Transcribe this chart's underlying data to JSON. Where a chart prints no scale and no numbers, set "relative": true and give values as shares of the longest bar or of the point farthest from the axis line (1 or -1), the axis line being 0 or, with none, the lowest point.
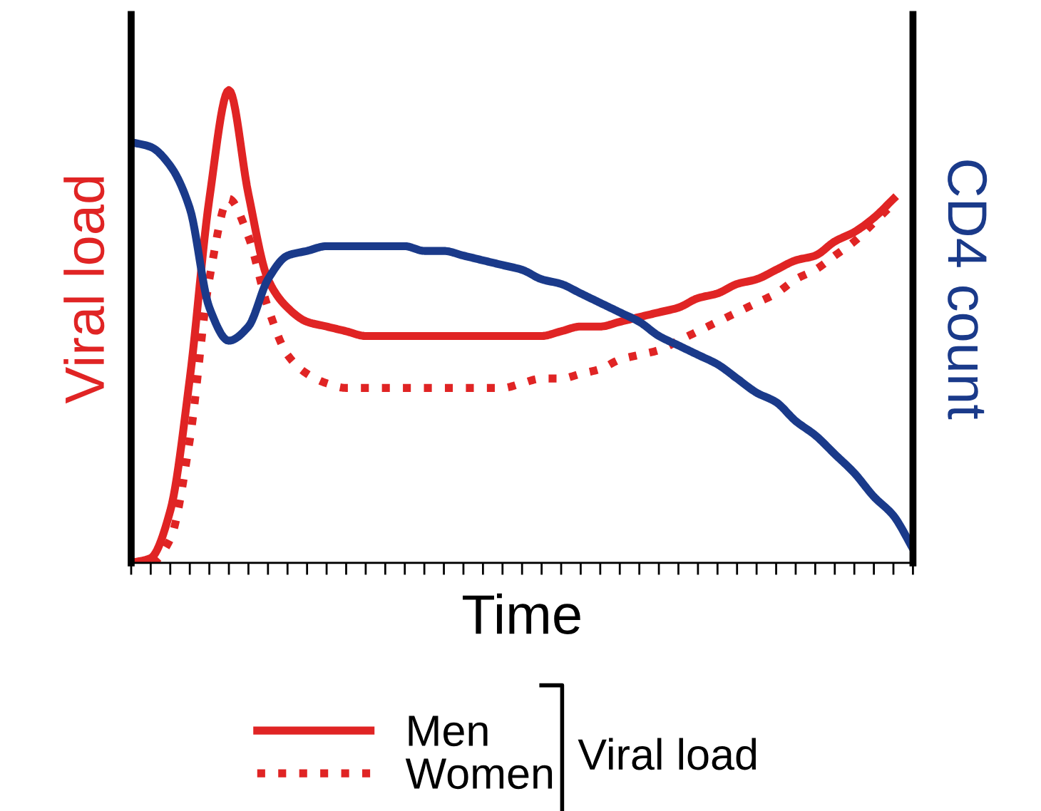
{
  "chart_data": {
    "type": "line",
    "relative": true,
    "xlabel": "Time",
    "ylabel": "Viral load",
    "y2label": "CD4 count",
    "legend_title": "Viral load",
    "legend": "bottom",
    "grid": false,
    "categories": [
      null,
      null,
      null,
      null,
      null,
      null,
      null,
      null,
      null,
      null,
      null,
      null,
      null,
      null,
      null,
      null,
      null,
      null,
      null,
      null,
      null,
      null,
      null,
      null,
      null,
      null,
      null,
      null,
      null,
      null,
      null,
      null,
      null,
      null,
      null,
      null,
      null,
      null,
      null,
      null,
      null
    ],
    "series": [
      {
        "name": "Men",
        "color": "#e02424",
        "line_style": "solid",
        "values": [
          0,
          0.01,
          0.11,
          0.39,
          0.77,
          1.0,
          0.78,
          0.6,
          0.54,
          0.51,
          0.5,
          0.49,
          0.48,
          0.48,
          0.48,
          0.48,
          0.48,
          0.48,
          0.48,
          0.48,
          0.48,
          0.48,
          0.49,
          0.5,
          0.5,
          0.51,
          0.52,
          0.53,
          0.54,
          0.56,
          0.57,
          0.59,
          0.6,
          0.62,
          0.64,
          0.65,
          0.68,
          0.7,
          0.73,
          0.77,
          null
        ]
      },
      {
        "name": "Women",
        "color": "#e02424",
        "line_style": "dotted",
        "values": [
          0,
          0.0,
          0.05,
          0.26,
          0.6,
          0.77,
          0.69,
          0.54,
          0.44,
          0.4,
          0.38,
          0.37,
          0.37,
          0.37,
          0.37,
          0.37,
          0.37,
          0.37,
          0.37,
          0.37,
          0.38,
          0.39,
          0.39,
          0.4,
          0.41,
          0.43,
          0.44,
          0.45,
          0.47,
          0.49,
          0.51,
          0.53,
          0.55,
          0.57,
          0.6,
          0.62,
          0.65,
          0.68,
          0.72,
          0.76,
          null
        ]
      },
      {
        "color": "#1a3a8a",
        "line_style": "solid",
        "values": [
          0.89,
          0.88,
          0.84,
          0.75,
          0.54,
          0.47,
          0.5,
          0.6,
          0.65,
          0.66,
          0.67,
          0.67,
          0.67,
          0.67,
          0.67,
          0.66,
          0.66,
          0.65,
          0.64,
          0.63,
          0.62,
          0.6,
          0.59,
          0.57,
          0.55,
          0.53,
          0.51,
          0.48,
          0.46,
          0.44,
          0.42,
          0.39,
          0.36,
          0.34,
          0.3,
          0.27,
          0.23,
          0.19,
          0.14,
          0.1,
          0.03
        ]
      }
    ]
  }
}
